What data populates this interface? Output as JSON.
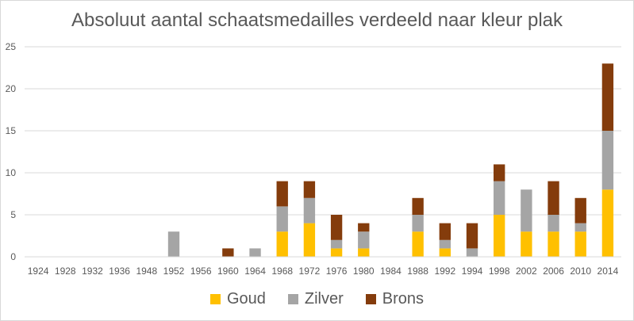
{
  "chart_data": {
    "type": "bar",
    "stacked": true,
    "title": "Absoluut aantal schaatsmedailles verdeeld naar kleur plak",
    "xlabel": "",
    "ylabel": "",
    "ylim": [
      0,
      25
    ],
    "yticks": [
      0,
      5,
      10,
      15,
      20,
      25
    ],
    "grid": true,
    "legend_position": "bottom",
    "categories": [
      "1924",
      "1928",
      "1932",
      "1936",
      "1948",
      "1952",
      "1956",
      "1960",
      "1964",
      "1968",
      "1972",
      "1976",
      "1980",
      "1984",
      "1988",
      "1992",
      "1994",
      "1998",
      "2002",
      "2006",
      "2010",
      "2014"
    ],
    "series": [
      {
        "name": "Goud",
        "color": "#FFC000",
        "values": [
          0,
          0,
          0,
          0,
          0,
          0,
          0,
          0,
          0,
          3,
          4,
          1,
          1,
          0,
          3,
          1,
          0,
          5,
          3,
          3,
          3,
          8
        ]
      },
      {
        "name": "Zilver",
        "color": "#A5A5A5",
        "values": [
          0,
          0,
          0,
          0,
          0,
          3,
          0,
          0,
          1,
          3,
          3,
          1,
          2,
          0,
          2,
          1,
          1,
          4,
          5,
          2,
          1,
          7
        ]
      },
      {
        "name": "Brons",
        "color": "#843C0C",
        "values": [
          0,
          0,
          0,
          0,
          0,
          0,
          0,
          1,
          0,
          3,
          2,
          3,
          1,
          0,
          2,
          2,
          3,
          2,
          0,
          4,
          3,
          8
        ]
      }
    ]
  }
}
